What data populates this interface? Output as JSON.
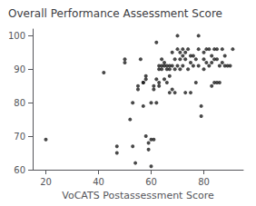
{
  "chart_data": {
    "type": "scatter",
    "title": "Overall Performance Assessment Score",
    "xlabel": "VoCATS Postassessment Score",
    "xlim": [
      15,
      95
    ],
    "ylim": [
      60,
      102
    ],
    "xticks": [
      20,
      40,
      60,
      80
    ],
    "yticks": [
      60,
      70,
      80,
      90,
      100
    ],
    "color": "#1a1a1a",
    "grid": false,
    "x": [
      20,
      42,
      47,
      47,
      50,
      50,
      52,
      53,
      53,
      54,
      55,
      55,
      56,
      57,
      57,
      57,
      58,
      58,
      58,
      59,
      59,
      60,
      60,
      60,
      61,
      61,
      61,
      62,
      62,
      62,
      63,
      63,
      63,
      63,
      64,
      64,
      64,
      65,
      65,
      65,
      66,
      66,
      66,
      67,
      67,
      67,
      67,
      68,
      68,
      68,
      69,
      69,
      69,
      70,
      70,
      70,
      71,
      71,
      71,
      72,
      72,
      72,
      73,
      73,
      73,
      74,
      74,
      75,
      75,
      75,
      76,
      76,
      77,
      77,
      78,
      78,
      78,
      79,
      79,
      80,
      80,
      80,
      81,
      81,
      82,
      82,
      83,
      83,
      83,
      84,
      84,
      84,
      85,
      85,
      85,
      86,
      86,
      87,
      87,
      88,
      88,
      89,
      90,
      91
    ],
    "values": [
      69,
      89,
      67,
      65,
      93,
      92,
      75,
      80,
      67,
      62,
      85,
      84,
      93,
      86,
      86,
      79,
      88,
      87,
      70,
      68,
      66,
      80,
      69,
      61,
      85,
      84,
      69,
      98,
      87,
      80,
      91,
      90,
      86,
      85,
      93,
      91,
      90,
      92,
      91,
      87,
      91,
      90,
      86,
      91,
      90,
      88,
      83,
      95,
      91,
      84,
      93,
      90,
      83,
      100,
      96,
      91,
      95,
      93,
      90,
      96,
      94,
      91,
      95,
      93,
      83,
      96,
      90,
      94,
      92,
      83,
      94,
      91,
      93,
      86,
      100,
      96,
      91,
      79,
      76,
      95,
      93,
      90,
      96,
      92,
      96,
      91,
      94,
      92,
      85,
      96,
      93,
      86,
      96,
      93,
      86,
      91,
      86,
      96,
      92,
      94,
      91,
      91,
      91,
      96
    ]
  }
}
